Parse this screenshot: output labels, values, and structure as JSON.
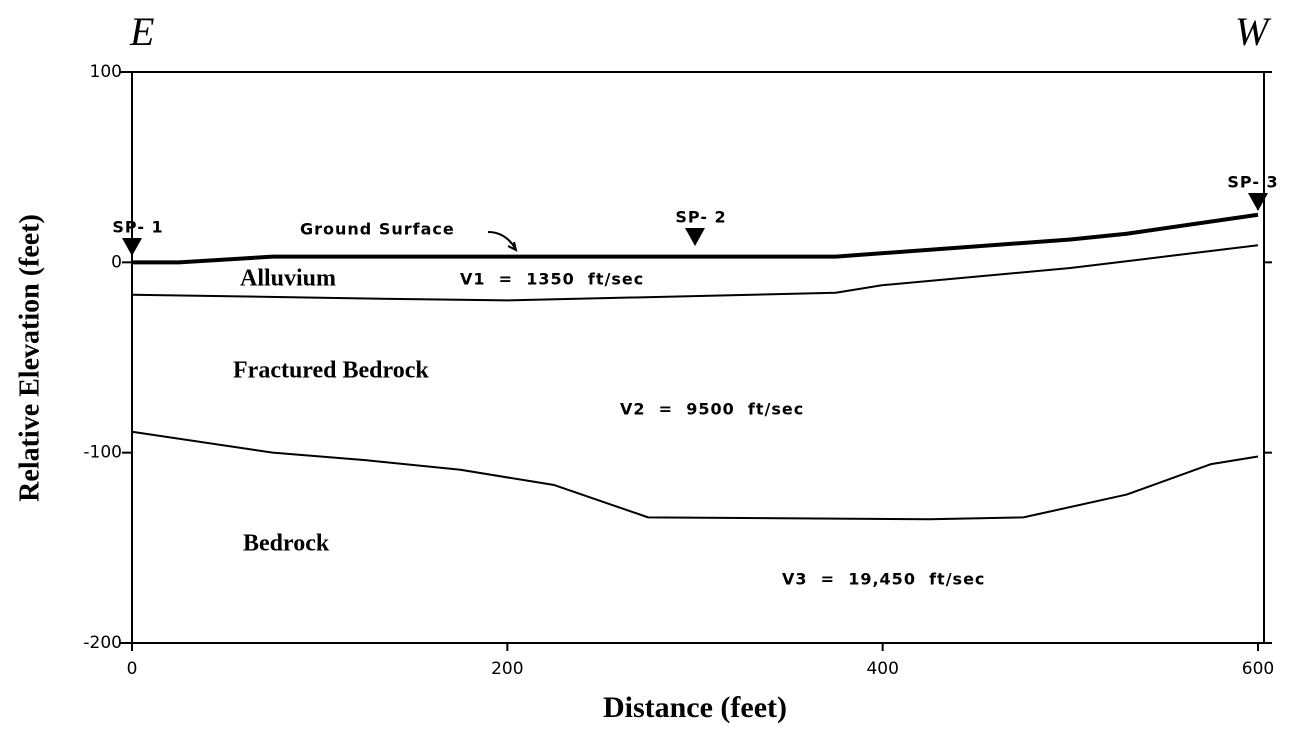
{
  "chart_data": {
    "type": "line",
    "left_label": "E",
    "right_label": "W",
    "xlabel": "Distance (feet)",
    "ylabel": "Relative Elevation (feet)",
    "xlim": [
      0,
      600
    ],
    "ylim": [
      -200,
      100
    ],
    "xticks": [
      0,
      200,
      400,
      600
    ],
    "yticks": [
      100,
      0,
      -100,
      -200
    ],
    "series": [
      {
        "name": "Ground Surface",
        "color": "#000000",
        "line_width": 4,
        "x": [
          0,
          25,
          75,
          200,
          375,
          500,
          530,
          600
        ],
        "values": [
          0,
          0,
          3,
          3,
          3,
          12,
          15,
          25
        ]
      },
      {
        "color": "#000000",
        "line_width": 2,
        "x": [
          0,
          125,
          200,
          375,
          400,
          500,
          600
        ],
        "values": [
          -17,
          -19,
          -20,
          -16,
          -12,
          -3,
          9
        ]
      },
      {
        "color": "#000000",
        "line_width": 2,
        "x": [
          0,
          75,
          125,
          175,
          225,
          275,
          425,
          475,
          530,
          575,
          600
        ],
        "values": [
          -89,
          -100,
          -104,
          -109,
          -117,
          -134,
          -135,
          -134,
          -122,
          -106,
          -102
        ]
      }
    ],
    "shot_points": [
      {
        "label": "SP- 1",
        "x": 0
      },
      {
        "label": "SP- 2",
        "x": 300
      },
      {
        "label": "SP- 3",
        "x": 600
      }
    ],
    "layers": [
      {
        "name": "Alluvium",
        "velocity": "V1  =  1350  ft/sec"
      },
      {
        "name": "Fractured Bedrock",
        "velocity": "V2  =  9500  ft/sec"
      },
      {
        "name": "Bedrock",
        "velocity": "V3  =  19,450  ft/sec"
      }
    ]
  }
}
